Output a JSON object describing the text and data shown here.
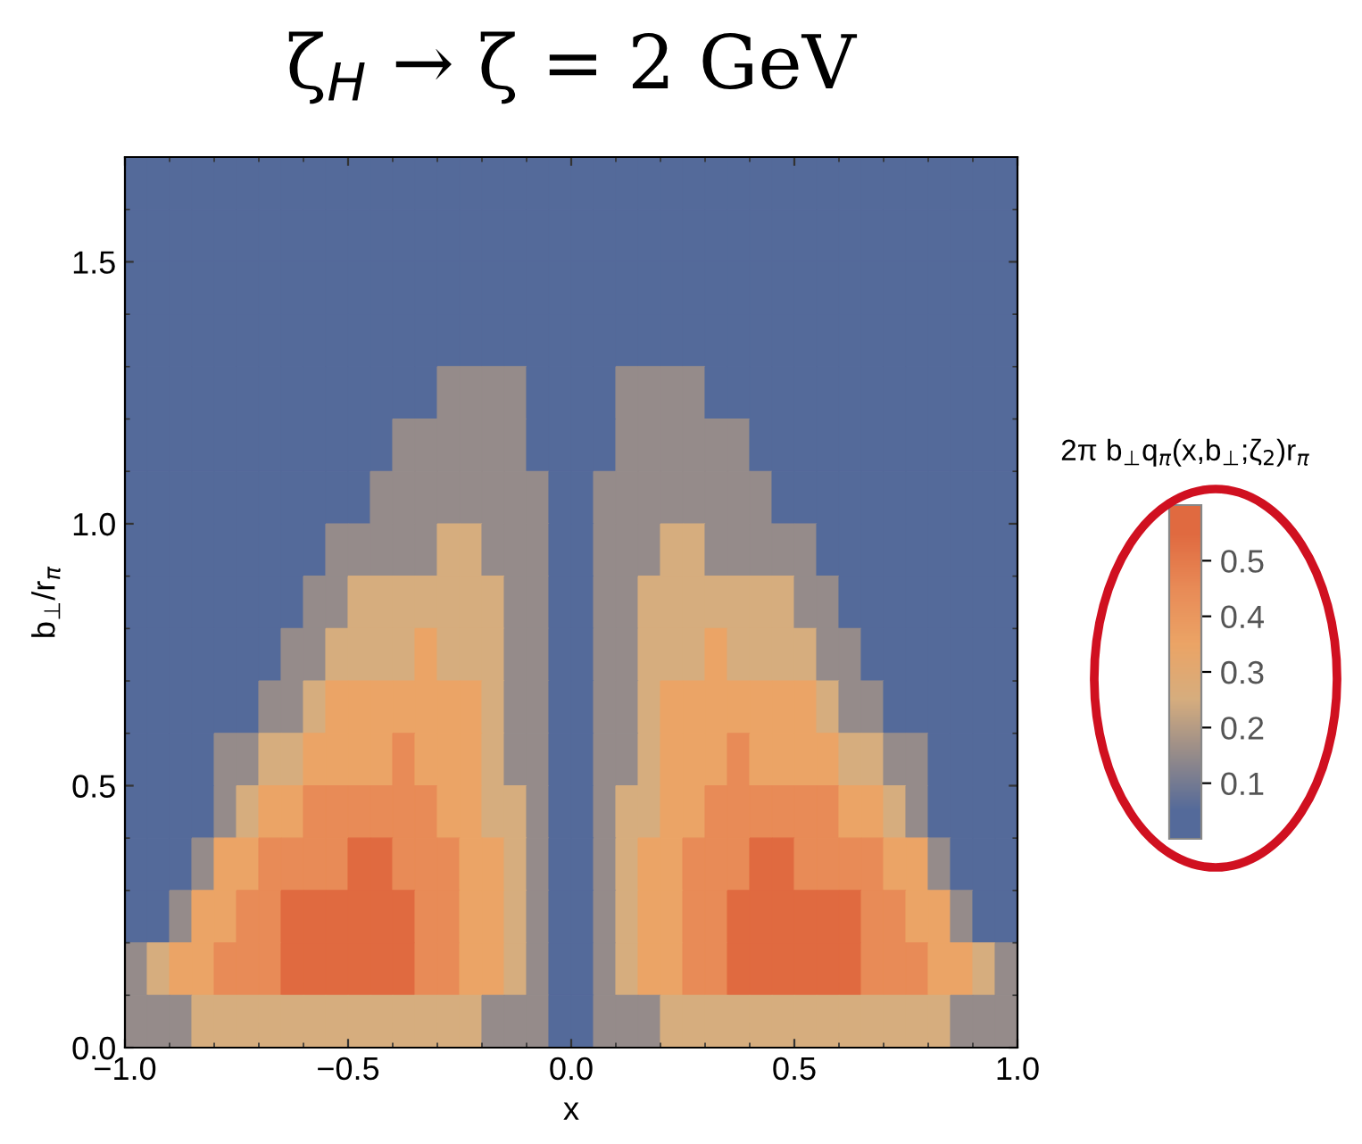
{
  "chart_data": {
    "type": "heatmap",
    "title": "ζ$_{H}$ → ζ = 2 GeV",
    "xlabel": "x",
    "ylabel": "b$_{⊥}$/r$_{π}$",
    "clabel": "2π b$_{⊥}$q$_{π}$(x,b$_{⊥}$;ζ$_{2}$)r$_{π}$",
    "x": [
      -0.975,
      -0.925,
      -0.875,
      -0.825,
      -0.775,
      -0.725,
      -0.675,
      -0.625,
      -0.575,
      -0.525,
      -0.475,
      -0.425,
      -0.375,
      -0.325,
      -0.275,
      -0.225,
      -0.175,
      -0.125,
      -0.075,
      -0.025,
      0.025,
      0.075,
      0.125,
      0.175,
      0.225,
      0.275,
      0.325,
      0.375,
      0.425,
      0.475,
      0.525,
      0.575,
      0.625,
      0.675,
      0.725,
      0.775,
      0.825,
      0.875,
      0.925,
      0.975
    ],
    "y": [
      1.65,
      1.55,
      1.45,
      1.35,
      1.25,
      1.15,
      1.05,
      0.95,
      0.85,
      0.75,
      0.65,
      0.55,
      0.45,
      0.35,
      0.25,
      0.15,
      0.05
    ],
    "xlim": [
      -1.0,
      1.0
    ],
    "xticks": [
      {
        "value": -1.0,
        "label": "−1.0"
      },
      {
        "value": -0.5,
        "label": "−0.5"
      },
      {
        "value": 0.0,
        "label": "0.0"
      },
      {
        "value": 0.5,
        "label": "0.5"
      },
      {
        "value": 1.0,
        "label": "1.0"
      }
    ],
    "ylim": [
      0.0,
      1.7
    ],
    "yticks": [
      {
        "value": 0.0,
        "label": "0.0"
      },
      {
        "value": 0.5,
        "label": "0.5"
      },
      {
        "value": 1.0,
        "label": "1.0"
      },
      {
        "value": 1.5,
        "label": "1.5"
      }
    ],
    "clim": [
      0.0,
      0.6
    ],
    "cticks": [
      0.1,
      0.2,
      0.3,
      0.4,
      0.5
    ],
    "colors": [
      "#546a9a",
      "#958b8a",
      "#d6ad7e",
      "#eba466",
      "#e88b57",
      "#e06a40"
    ],
    "grid": false,
    "cells": [
      [
        0.05,
        0.05,
        0.05,
        0.05,
        0.05,
        0.05,
        0.05,
        0.05,
        0.05,
        0.05,
        0.05,
        0.05,
        0.05,
        0.05,
        0.05,
        0.05,
        0.05,
        0.05,
        0.05,
        0.05,
        0.05,
        0.05,
        0.05,
        0.05,
        0.05,
        0.05,
        0.05,
        0.05,
        0.05,
        0.05,
        0.05,
        0.05,
        0.05,
        0.05,
        0.05,
        0.05,
        0.05,
        0.05,
        0.05,
        0.05
      ],
      [
        0.05,
        0.05,
        0.05,
        0.05,
        0.05,
        0.05,
        0.05,
        0.05,
        0.05,
        0.05,
        0.05,
        0.05,
        0.05,
        0.05,
        0.05,
        0.05,
        0.05,
        0.05,
        0.05,
        0.05,
        0.05,
        0.05,
        0.05,
        0.05,
        0.05,
        0.05,
        0.05,
        0.05,
        0.05,
        0.05,
        0.05,
        0.05,
        0.05,
        0.05,
        0.05,
        0.05,
        0.05,
        0.05,
        0.05,
        0.05
      ],
      [
        0.05,
        0.05,
        0.05,
        0.05,
        0.05,
        0.05,
        0.05,
        0.05,
        0.05,
        0.05,
        0.05,
        0.05,
        0.05,
        0.05,
        0.05,
        0.05,
        0.05,
        0.05,
        0.05,
        0.05,
        0.05,
        0.05,
        0.05,
        0.05,
        0.05,
        0.05,
        0.05,
        0.05,
        0.05,
        0.05,
        0.05,
        0.05,
        0.05,
        0.05,
        0.05,
        0.05,
        0.05,
        0.05,
        0.05,
        0.05
      ],
      [
        0.05,
        0.05,
        0.05,
        0.05,
        0.05,
        0.05,
        0.05,
        0.05,
        0.05,
        0.05,
        0.05,
        0.05,
        0.05,
        0.05,
        0.05,
        0.05,
        0.05,
        0.05,
        0.05,
        0.05,
        0.05,
        0.05,
        0.05,
        0.05,
        0.05,
        0.05,
        0.05,
        0.05,
        0.05,
        0.05,
        0.05,
        0.05,
        0.05,
        0.05,
        0.05,
        0.05,
        0.05,
        0.05,
        0.05,
        0.05
      ],
      [
        0.05,
        0.05,
        0.05,
        0.05,
        0.05,
        0.05,
        0.05,
        0.05,
        0.05,
        0.05,
        0.05,
        0.05,
        0.05,
        0.05,
        0.15,
        0.15,
        0.15,
        0.15,
        0.05,
        0.05,
        0.05,
        0.05,
        0.15,
        0.15,
        0.15,
        0.15,
        0.05,
        0.05,
        0.05,
        0.05,
        0.05,
        0.05,
        0.05,
        0.05,
        0.05,
        0.05,
        0.05,
        0.05,
        0.05,
        0.05
      ],
      [
        0.05,
        0.05,
        0.05,
        0.05,
        0.05,
        0.05,
        0.05,
        0.05,
        0.05,
        0.05,
        0.05,
        0.05,
        0.15,
        0.15,
        0.15,
        0.15,
        0.15,
        0.15,
        0.05,
        0.05,
        0.05,
        0.05,
        0.15,
        0.15,
        0.15,
        0.15,
        0.15,
        0.15,
        0.05,
        0.05,
        0.05,
        0.05,
        0.05,
        0.05,
        0.05,
        0.05,
        0.05,
        0.05,
        0.05,
        0.05
      ],
      [
        0.05,
        0.05,
        0.05,
        0.05,
        0.05,
        0.05,
        0.05,
        0.05,
        0.05,
        0.05,
        0.05,
        0.15,
        0.15,
        0.15,
        0.15,
        0.15,
        0.15,
        0.15,
        0.15,
        0.05,
        0.05,
        0.15,
        0.15,
        0.15,
        0.15,
        0.15,
        0.15,
        0.15,
        0.15,
        0.05,
        0.05,
        0.05,
        0.05,
        0.05,
        0.05,
        0.05,
        0.05,
        0.05,
        0.05,
        0.05
      ],
      [
        0.05,
        0.05,
        0.05,
        0.05,
        0.05,
        0.05,
        0.05,
        0.05,
        0.05,
        0.15,
        0.15,
        0.15,
        0.15,
        0.15,
        0.25,
        0.25,
        0.15,
        0.15,
        0.15,
        0.05,
        0.05,
        0.15,
        0.15,
        0.15,
        0.25,
        0.25,
        0.15,
        0.15,
        0.15,
        0.15,
        0.15,
        0.05,
        0.05,
        0.05,
        0.05,
        0.05,
        0.05,
        0.05,
        0.05,
        0.05
      ],
      [
        0.05,
        0.05,
        0.05,
        0.05,
        0.05,
        0.05,
        0.05,
        0.05,
        0.15,
        0.15,
        0.25,
        0.25,
        0.25,
        0.25,
        0.25,
        0.25,
        0.25,
        0.15,
        0.15,
        0.05,
        0.05,
        0.15,
        0.15,
        0.25,
        0.25,
        0.25,
        0.25,
        0.25,
        0.25,
        0.25,
        0.15,
        0.15,
        0.05,
        0.05,
        0.05,
        0.05,
        0.05,
        0.05,
        0.05,
        0.05
      ],
      [
        0.05,
        0.05,
        0.05,
        0.05,
        0.05,
        0.05,
        0.05,
        0.15,
        0.15,
        0.25,
        0.25,
        0.25,
        0.25,
        0.35,
        0.25,
        0.25,
        0.25,
        0.15,
        0.15,
        0.05,
        0.05,
        0.15,
        0.15,
        0.25,
        0.25,
        0.25,
        0.35,
        0.25,
        0.25,
        0.25,
        0.25,
        0.15,
        0.15,
        0.05,
        0.05,
        0.05,
        0.05,
        0.05,
        0.05,
        0.05
      ],
      [
        0.05,
        0.05,
        0.05,
        0.05,
        0.05,
        0.05,
        0.15,
        0.15,
        0.25,
        0.35,
        0.35,
        0.35,
        0.35,
        0.35,
        0.35,
        0.35,
        0.25,
        0.15,
        0.15,
        0.05,
        0.05,
        0.15,
        0.15,
        0.25,
        0.35,
        0.35,
        0.35,
        0.35,
        0.35,
        0.35,
        0.35,
        0.25,
        0.15,
        0.15,
        0.05,
        0.05,
        0.05,
        0.05,
        0.05,
        0.05
      ],
      [
        0.05,
        0.05,
        0.05,
        0.05,
        0.15,
        0.15,
        0.25,
        0.25,
        0.35,
        0.35,
        0.35,
        0.35,
        0.45,
        0.35,
        0.35,
        0.35,
        0.25,
        0.15,
        0.15,
        0.05,
        0.05,
        0.15,
        0.15,
        0.25,
        0.35,
        0.35,
        0.35,
        0.45,
        0.35,
        0.35,
        0.35,
        0.35,
        0.25,
        0.25,
        0.15,
        0.15,
        0.05,
        0.05,
        0.05,
        0.05
      ],
      [
        0.05,
        0.05,
        0.05,
        0.05,
        0.15,
        0.25,
        0.35,
        0.35,
        0.45,
        0.45,
        0.45,
        0.45,
        0.45,
        0.45,
        0.35,
        0.35,
        0.25,
        0.25,
        0.15,
        0.05,
        0.05,
        0.15,
        0.25,
        0.25,
        0.35,
        0.35,
        0.45,
        0.45,
        0.45,
        0.45,
        0.45,
        0.45,
        0.35,
        0.35,
        0.25,
        0.15,
        0.05,
        0.05,
        0.05,
        0.05
      ],
      [
        0.05,
        0.05,
        0.05,
        0.15,
        0.35,
        0.35,
        0.45,
        0.45,
        0.45,
        0.45,
        0.55,
        0.55,
        0.45,
        0.45,
        0.45,
        0.35,
        0.35,
        0.25,
        0.15,
        0.05,
        0.05,
        0.15,
        0.25,
        0.35,
        0.35,
        0.45,
        0.45,
        0.45,
        0.55,
        0.55,
        0.45,
        0.45,
        0.45,
        0.45,
        0.35,
        0.35,
        0.15,
        0.05,
        0.05,
        0.05
      ],
      [
        0.05,
        0.05,
        0.15,
        0.35,
        0.35,
        0.45,
        0.45,
        0.55,
        0.55,
        0.55,
        0.55,
        0.55,
        0.55,
        0.45,
        0.45,
        0.35,
        0.35,
        0.25,
        0.15,
        0.05,
        0.05,
        0.15,
        0.25,
        0.35,
        0.35,
        0.45,
        0.45,
        0.55,
        0.55,
        0.55,
        0.55,
        0.55,
        0.55,
        0.45,
        0.45,
        0.35,
        0.35,
        0.15,
        0.05,
        0.05
      ],
      [
        0.15,
        0.25,
        0.35,
        0.35,
        0.45,
        0.45,
        0.45,
        0.55,
        0.55,
        0.55,
        0.55,
        0.55,
        0.55,
        0.45,
        0.45,
        0.35,
        0.35,
        0.25,
        0.15,
        0.05,
        0.05,
        0.15,
        0.25,
        0.35,
        0.35,
        0.45,
        0.45,
        0.55,
        0.55,
        0.55,
        0.55,
        0.55,
        0.55,
        0.45,
        0.45,
        0.45,
        0.35,
        0.35,
        0.25,
        0.15
      ],
      [
        0.15,
        0.15,
        0.15,
        0.25,
        0.25,
        0.25,
        0.25,
        0.25,
        0.25,
        0.25,
        0.25,
        0.25,
        0.25,
        0.25,
        0.25,
        0.25,
        0.15,
        0.15,
        0.15,
        0.05,
        0.05,
        0.15,
        0.15,
        0.15,
        0.25,
        0.25,
        0.25,
        0.25,
        0.25,
        0.25,
        0.25,
        0.25,
        0.25,
        0.25,
        0.25,
        0.25,
        0.25,
        0.15,
        0.15,
        0.15
      ]
    ]
  }
}
